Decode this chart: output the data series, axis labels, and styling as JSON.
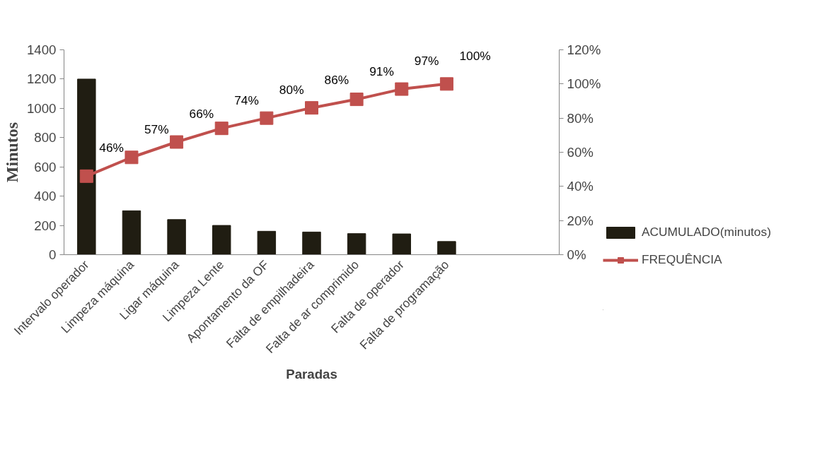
{
  "chart_data": {
    "type": "bar",
    "xlabel": "Paradas",
    "ylabel": "Minutos",
    "categories": [
      "Intervalo operador",
      "Limpeza máquina",
      "Ligar máquina",
      "Limpeza Lente",
      "Apontamento da OF",
      "Falta de empilhadeira",
      "Falta de ar comprimido",
      "Falta de operador",
      "Falta de programação",
      null,
      null
    ],
    "series": [
      {
        "name": "ACUMULADO(minutos)",
        "color": "#201d12",
        "values": [
          1200,
          300,
          240,
          200,
          160,
          155,
          144,
          142,
          90,
          null,
          null
        ]
      },
      {
        "name": "FREQUÊNCIA",
        "type": "line",
        "axis": "y2",
        "color": "#c0504d",
        "marker": "square",
        "values": [
          46,
          57,
          66,
          74,
          80,
          86,
          91,
          97,
          100,
          null,
          null
        ],
        "value_labels": [
          "46%",
          "57%",
          "66%",
          "74%",
          "80%",
          "86%",
          "91%",
          "97%",
          "100%",
          null,
          null
        ]
      }
    ],
    "ylim": [
      0,
      1400
    ],
    "yticks": [
      0,
      200,
      400,
      600,
      800,
      1000,
      1200,
      1400
    ],
    "y2lim": [
      0,
      120
    ],
    "y2ticks": [
      {
        "value": 0,
        "label": "0%"
      },
      {
        "value": 20,
        "label": "20%"
      },
      {
        "value": 40,
        "label": "40%"
      },
      {
        "value": 60,
        "label": "60%"
      },
      {
        "value": 80,
        "label": "80%"
      },
      {
        "value": 100,
        "label": "100%"
      },
      {
        "value": 120,
        "label": "120%"
      }
    ],
    "grid": false,
    "legend": "bottom right"
  }
}
